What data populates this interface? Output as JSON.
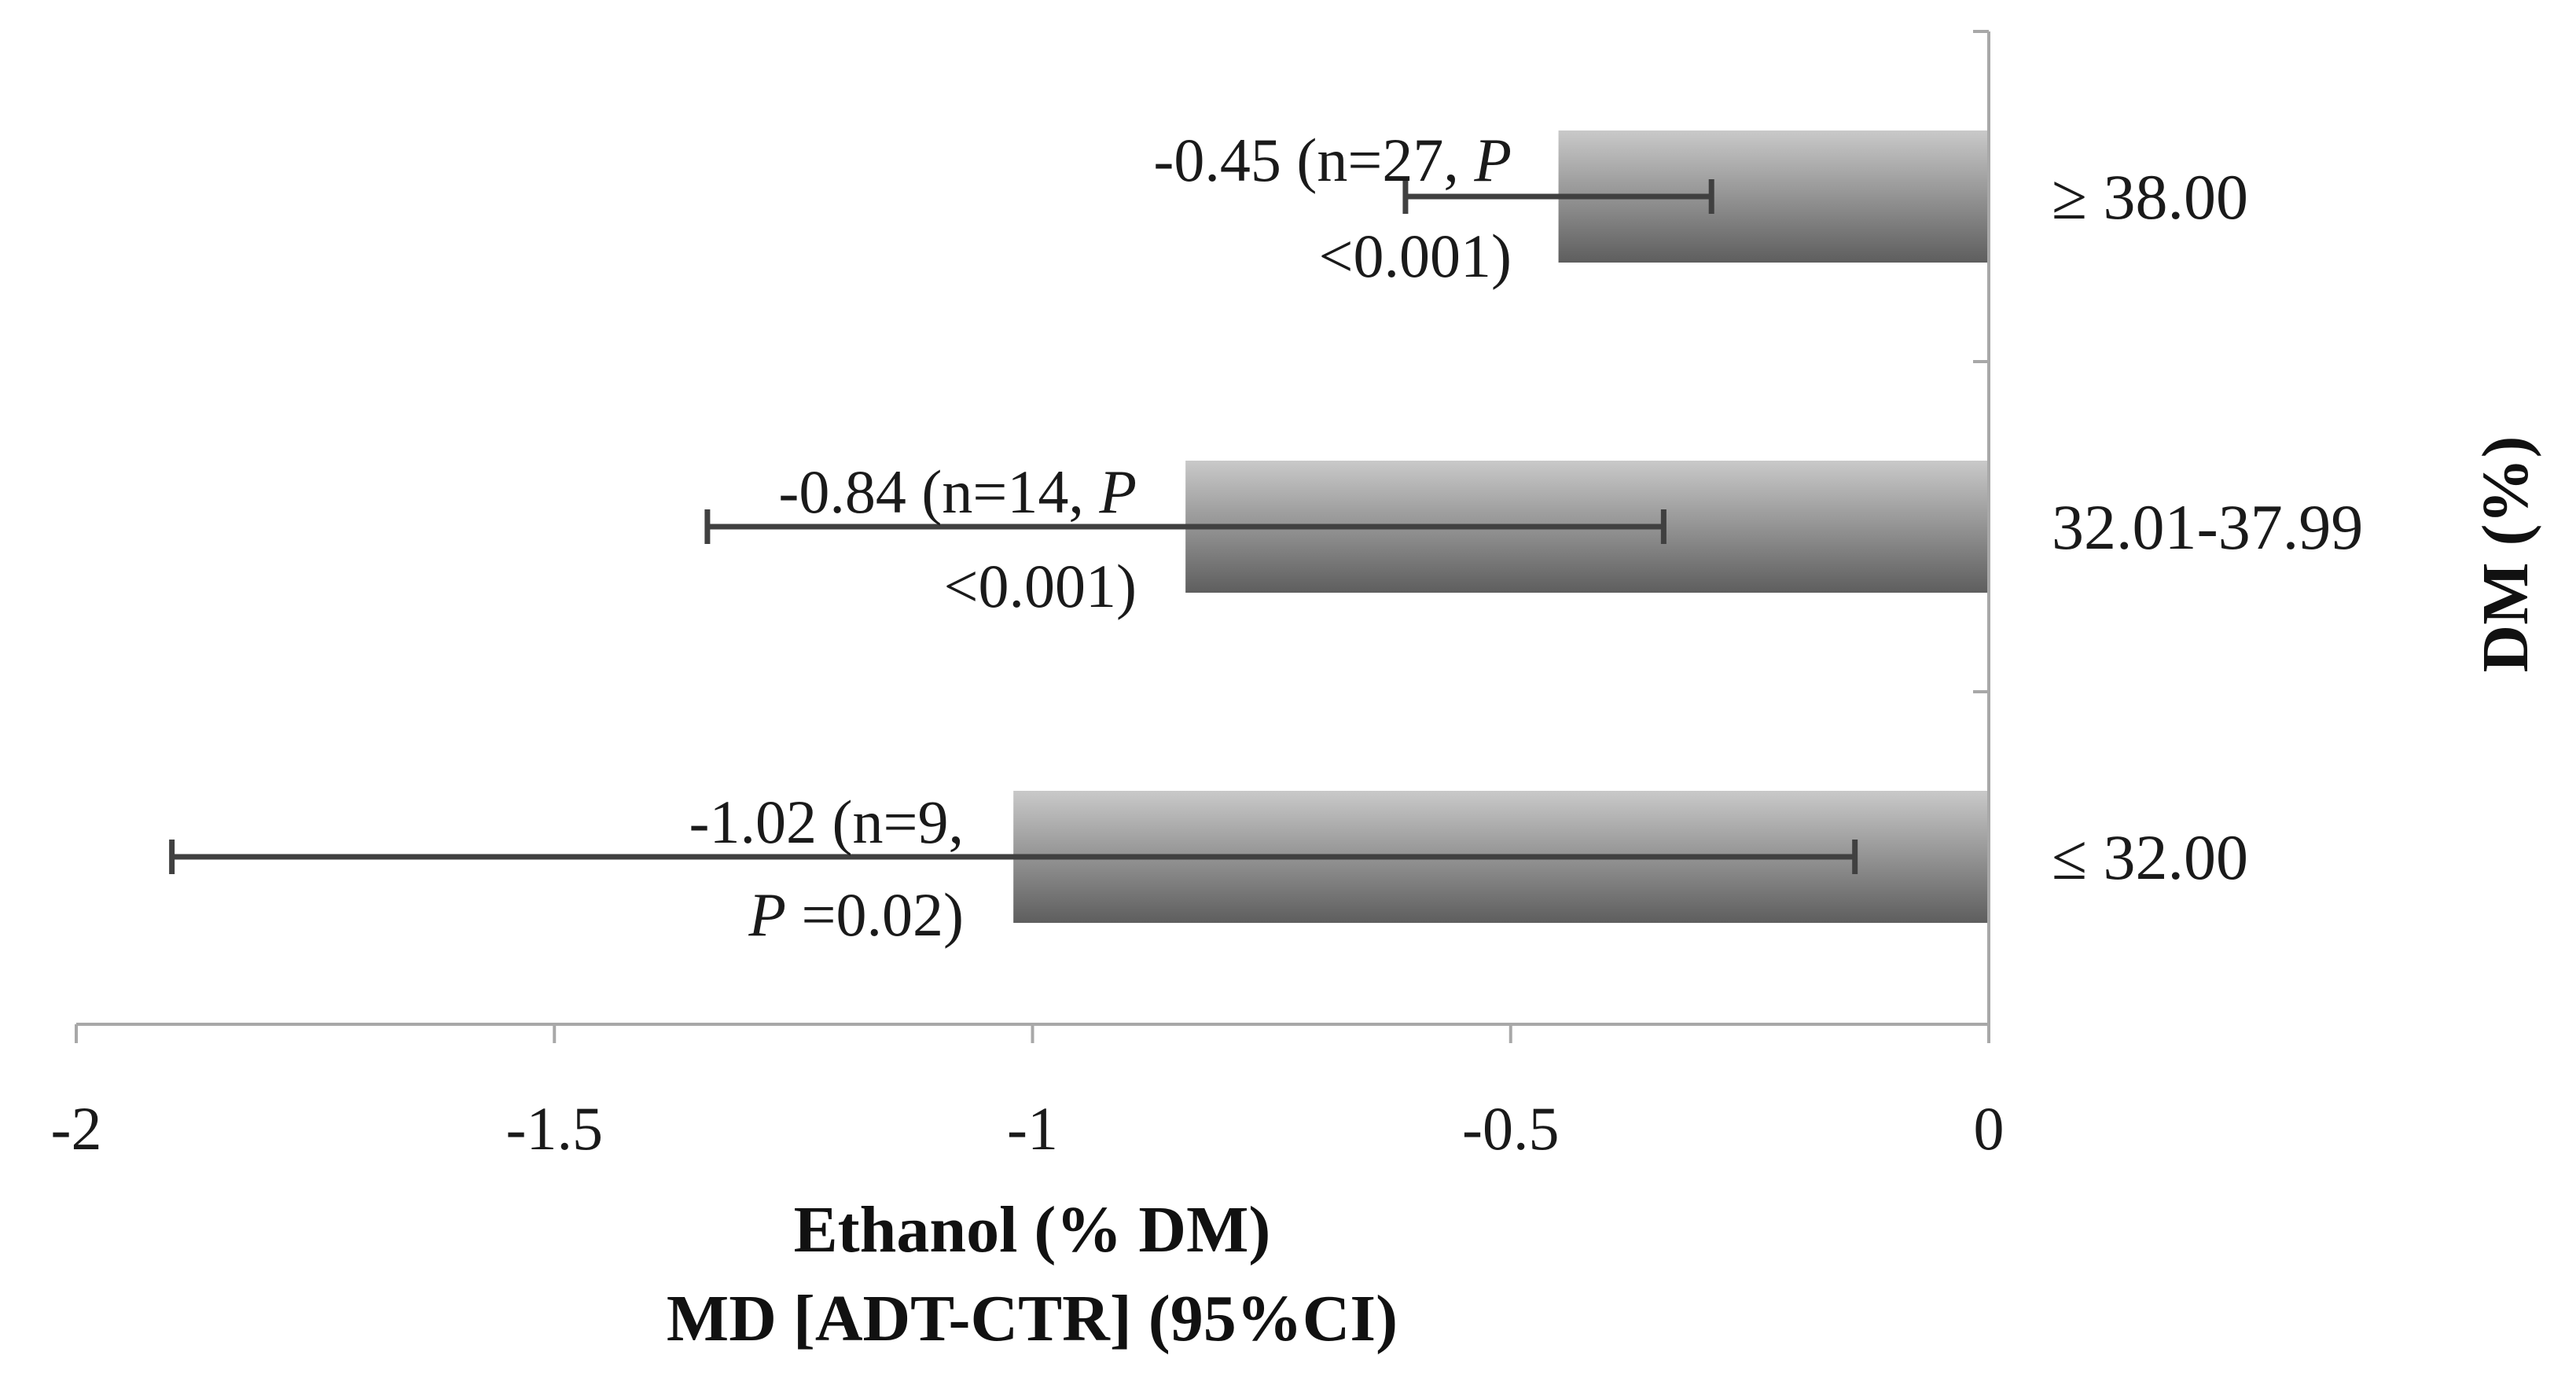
{
  "chart_data": {
    "type": "bar",
    "orientation": "horizontal",
    "categories": [
      "≥ 38.00",
      "32.01-37.99",
      "≤ 32.00"
    ],
    "values": [
      -0.45,
      -0.84,
      -1.02
    ],
    "ci_lower": [
      -0.61,
      -1.34,
      -1.9
    ],
    "ci_upper": [
      -0.29,
      -0.34,
      -0.14
    ],
    "annotations": [
      {
        "line1_pre": "-0.45 (n=27, ",
        "line1_ital": "P",
        "line1_post": "",
        "line2_pre": "",
        "line2_ital": "",
        "line2_post": "<0.001)"
      },
      {
        "line1_pre": "-0.84 (n=14, ",
        "line1_ital": "P",
        "line1_post": "",
        "line2_pre": "",
        "line2_ital": "",
        "line2_post": "<0.001)"
      },
      {
        "line1_pre": "-1.02 (n=9,",
        "line1_ital": "",
        "line1_post": "",
        "line2_pre": "",
        "line2_ital": "P",
        "line2_post": " =0.02)"
      }
    ],
    "x_ticks": [
      -2,
      -1.5,
      -1,
      -0.5,
      0
    ],
    "x_tick_labels": [
      "-2",
      "-1.5",
      "-1",
      "-0.5",
      "0"
    ],
    "xlim": [
      -2,
      0
    ],
    "xlabel_line1": "Ethanol (% DM)",
    "xlabel_line2": "MD [ADT-CTR] (95%CI)",
    "ylabel": "DM (%)",
    "ylabel_position": "right",
    "grid": false,
    "legend": "none",
    "colors": {
      "bar_light": "#c9c9c9",
      "bar_dark": "#5e5e5e",
      "error_bar": "#404040",
      "axis": "#a8a8a8",
      "text": "#1a1a1a"
    }
  }
}
